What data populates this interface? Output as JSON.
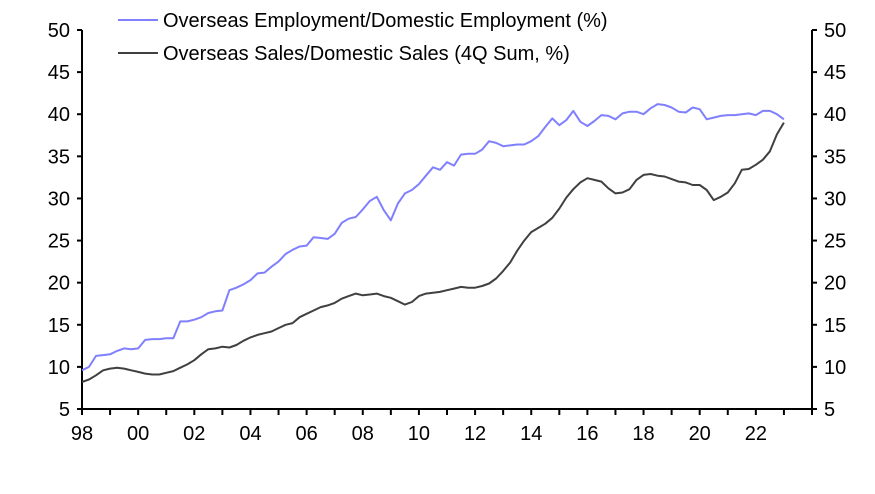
{
  "chart_data": {
    "type": "line",
    "title": "",
    "xlabel": "",
    "ylabel": "",
    "x_start": 1998,
    "x_step_years": 0.25,
    "xlim": [
      1998,
      2024
    ],
    "ylim": [
      5,
      50
    ],
    "y_ticks": [
      "5",
      "10",
      "15",
      "20",
      "25",
      "30",
      "35",
      "40",
      "45",
      "50"
    ],
    "x_tick_labels": [
      "98",
      "00",
      "02",
      "04",
      "06",
      "08",
      "10",
      "12",
      "14",
      "16",
      "18",
      "20",
      "22"
    ],
    "grid": false,
    "legend_position": "top-left",
    "series": [
      {
        "name": "Overseas Employment/Domestic Employment (%)",
        "color": "#8080ff",
        "values": [
          9.6,
          10.0,
          11.3,
          11.4,
          11.5,
          11.9,
          12.2,
          12.1,
          12.2,
          13.2,
          13.3,
          13.3,
          13.4,
          13.4,
          15.4,
          15.4,
          15.6,
          15.9,
          16.4,
          16.6,
          16.7,
          19.1,
          19.4,
          19.8,
          20.3,
          21.1,
          21.2,
          21.9,
          22.5,
          23.4,
          23.9,
          24.3,
          24.4,
          25.4,
          25.3,
          25.2,
          25.8,
          27.1,
          27.6,
          27.8,
          28.7,
          29.7,
          30.2,
          28.6,
          27.4,
          29.4,
          30.6,
          31.0,
          31.7,
          32.7,
          33.7,
          33.4,
          34.3,
          33.9,
          35.2,
          35.3,
          35.3,
          35.8,
          36.8,
          36.6,
          36.2,
          36.3,
          36.4,
          36.4,
          36.8,
          37.4,
          38.5,
          39.5,
          38.7,
          39.3,
          40.4,
          39.1,
          38.6,
          39.2,
          39.9,
          39.8,
          39.4,
          40.1,
          40.3,
          40.3,
          40.0,
          40.7,
          41.2,
          41.1,
          40.8,
          40.3,
          40.2,
          40.8,
          40.6,
          39.4,
          39.6,
          39.8,
          39.9,
          39.9,
          40.0,
          40.1,
          39.9,
          40.4,
          40.4,
          40.0,
          39.4
        ]
      },
      {
        "name": "Overseas Sales/Domestic Sales (4Q Sum, %)",
        "color": "#404040",
        "values": [
          8.2,
          8.5,
          9.0,
          9.6,
          9.8,
          9.9,
          9.8,
          9.6,
          9.4,
          9.2,
          9.1,
          9.1,
          9.3,
          9.5,
          9.9,
          10.3,
          10.8,
          11.5,
          12.1,
          12.2,
          12.4,
          12.3,
          12.6,
          13.1,
          13.5,
          13.8,
          14.0,
          14.2,
          14.6,
          15.0,
          15.2,
          15.9,
          16.3,
          16.7,
          17.1,
          17.3,
          17.6,
          18.1,
          18.4,
          18.7,
          18.5,
          18.6,
          18.7,
          18.4,
          18.2,
          17.8,
          17.4,
          17.7,
          18.4,
          18.7,
          18.8,
          18.9,
          19.1,
          19.3,
          19.5,
          19.4,
          19.4,
          19.6,
          19.9,
          20.5,
          21.4,
          22.4,
          23.8,
          25.0,
          26.0,
          26.5,
          27.0,
          27.7,
          28.8,
          30.1,
          31.1,
          31.9,
          32.4,
          32.2,
          32.0,
          31.2,
          30.6,
          30.7,
          31.1,
          32.2,
          32.8,
          32.9,
          32.7,
          32.6,
          32.3,
          32.0,
          31.9,
          31.6,
          31.6,
          31.0,
          29.8,
          30.2,
          30.7,
          31.8,
          33.4,
          33.5,
          34.0,
          34.6,
          35.6,
          37.6,
          39.0
        ]
      }
    ]
  }
}
